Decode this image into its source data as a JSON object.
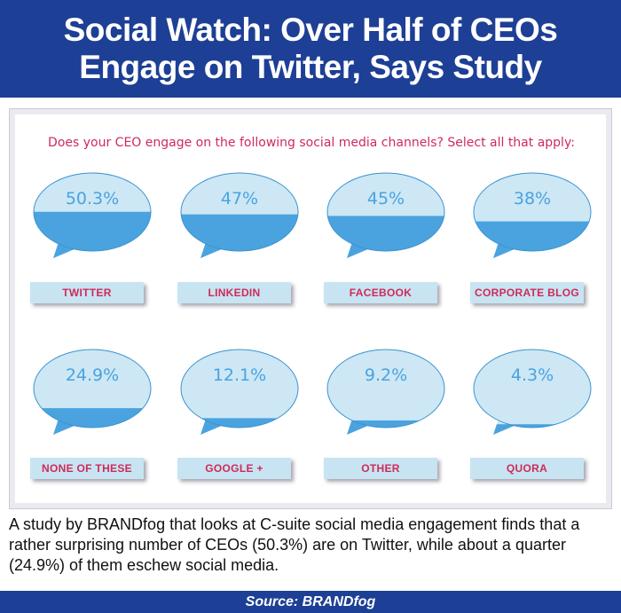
{
  "header": {
    "title": "Social Watch: Over Half of CEOs Engage on Twitter, Says Study"
  },
  "chart_data": {
    "type": "bar",
    "title": "Does your CEO engage on the following social media channels? Select all that apply:",
    "categories": [
      "TWITTER",
      "LINKEDIN",
      "FACEBOOK",
      "CORPORATE BLOG",
      "NONE OF THESE",
      "GOOGLE +",
      "OTHER",
      "QUORA"
    ],
    "values": [
      50.3,
      47,
      45,
      38,
      24.9,
      12.1,
      9.2,
      4.3
    ],
    "value_labels": [
      "50.3%",
      "47%",
      "45%",
      "38%",
      "24.9%",
      "12.1%",
      "9.2%",
      "4.3%"
    ],
    "ylim": [
      0,
      100
    ]
  },
  "colors": {
    "fill": "#4aa3df",
    "empty": "#cde7f5",
    "label_text": "#cf2a5a",
    "brand": "#1d3f95"
  },
  "description": "A study by BRANDfog that looks at C-suite social media engagement finds that a rather surprising number of CEOs (50.3%) are on Twitter, while about a quarter (24.9%) of them eschew social media.",
  "footer": {
    "source": "Source: BRANDfog"
  }
}
